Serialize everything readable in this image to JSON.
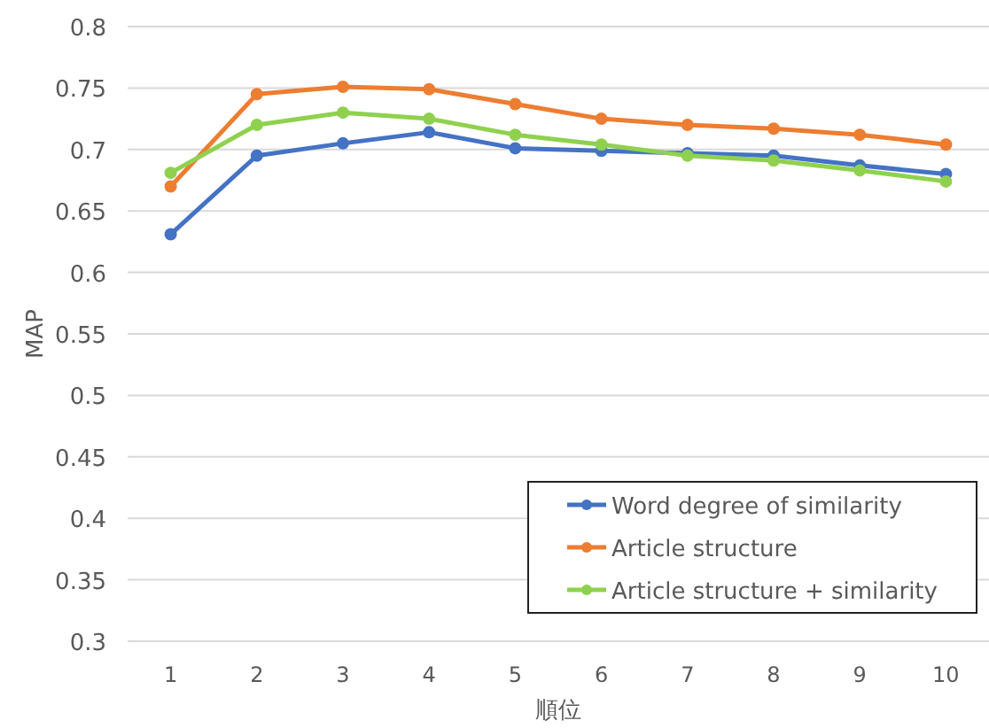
{
  "chart_data": {
    "type": "line",
    "xlabel": "順位",
    "ylabel": "MAP",
    "categories": [
      "1",
      "2",
      "3",
      "4",
      "5",
      "6",
      "7",
      "8",
      "9",
      "10"
    ],
    "series": [
      {
        "name": "Word degree of similarity",
        "color": "#4472c4",
        "values": [
          0.631,
          0.695,
          0.705,
          0.714,
          0.701,
          0.699,
          0.697,
          0.695,
          0.687,
          0.68
        ]
      },
      {
        "name": "Article structure",
        "color": "#ed7d31",
        "values": [
          0.67,
          0.745,
          0.751,
          0.749,
          0.737,
          0.725,
          0.72,
          0.717,
          0.712,
          0.704
        ]
      },
      {
        "name": "Article structure + similarity",
        "color": "#8fd14f",
        "values": [
          0.681,
          0.72,
          0.73,
          0.725,
          0.712,
          0.704,
          0.695,
          0.691,
          0.683,
          0.674
        ]
      }
    ],
    "ylim": [
      0.3,
      0.8
    ],
    "yticks": [
      0.3,
      0.35,
      0.4,
      0.45,
      0.5,
      0.55,
      0.6,
      0.65,
      0.7,
      0.75,
      0.8
    ],
    "grid": "y",
    "legend": "bottom right",
    "marker": "circle",
    "line_style": "solid"
  }
}
